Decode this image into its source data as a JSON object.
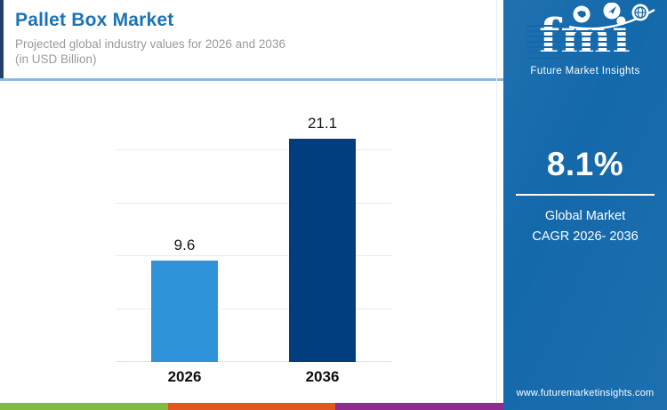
{
  "header": {
    "title": "Pallet Box Market",
    "subtitle_line1": "Projected global industry values for 2026 and 2036",
    "subtitle_line2": "(in USD Billion)"
  },
  "chart_data": {
    "type": "bar",
    "categories": [
      "2026",
      "2036"
    ],
    "values": [
      9.6,
      21.1
    ],
    "value_labels": [
      "9.6",
      "21.1"
    ],
    "bar_colors": [
      "#2E93D8",
      "#013E7D"
    ],
    "title": "Pallet Box Market",
    "xlabel": "",
    "ylabel": "",
    "unit": "USD Billion",
    "ylim": [
      0,
      25
    ],
    "gridline_values": [
      5,
      10,
      15,
      20
    ],
    "grid": true,
    "legend": false
  },
  "sidebar": {
    "background": "#1469AB",
    "logo": {
      "text": "fmi",
      "tagline": "Future Market Insights",
      "icons": [
        "map-icon",
        "paper-plane-icon",
        "globe-icon"
      ]
    },
    "cagr_value": "8.1%",
    "cagr_label_line1": "Global Market",
    "cagr_label_line2": "CAGR 2026- 2036",
    "website": "www.futuremarketinsights.com"
  },
  "footer_stripe_colors": [
    "#82BB41",
    "#E4561F",
    "#8E2D8F"
  ],
  "accent_colors": {
    "title_blue": "#1B74B6",
    "header_rule": "#8FB7D8",
    "header_accent": "#20406A"
  }
}
